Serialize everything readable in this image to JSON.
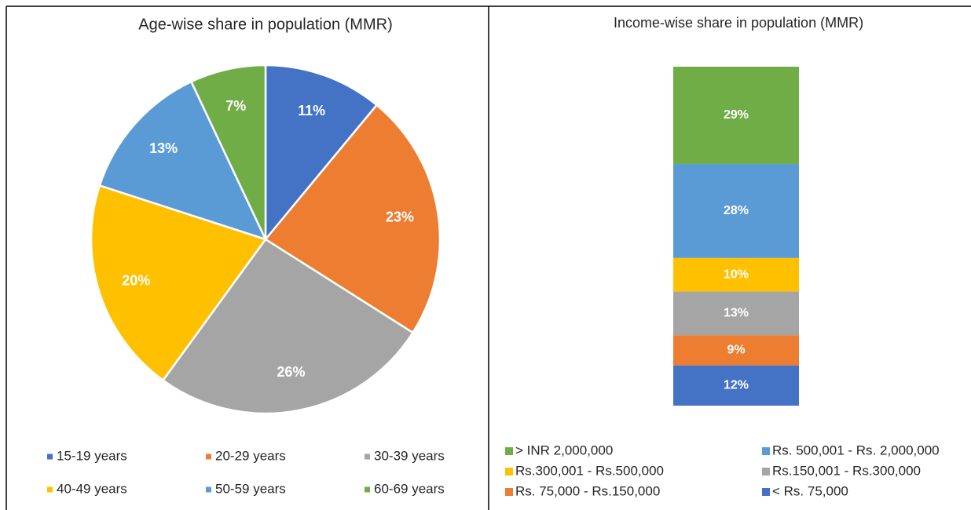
{
  "chart_data": [
    {
      "type": "pie",
      "title": "Age-wise share in population (MMR)",
      "categories": [
        "15-19 years",
        "20-29 years",
        "30-39 years",
        "40-49 years",
        "50-59 years",
        "60-69 years"
      ],
      "values": [
        11,
        23,
        26,
        20,
        13,
        7
      ],
      "value_labels": [
        "11%",
        "23%",
        "26%",
        "20%",
        "13%",
        "7%"
      ],
      "colors": [
        "#4472c4",
        "#ed7d31",
        "#a5a5a5",
        "#ffc000",
        "#5b9bd5",
        "#70ad47"
      ]
    },
    {
      "type": "stacked_bar",
      "title": "Income-wise share in population (MMR)",
      "series": [
        {
          "name": "< Rs. 75,000",
          "color": "#4472c4",
          "values": [
            12
          ],
          "value_labels": [
            "12%"
          ]
        },
        {
          "name": "Rs. 75,000 - Rs.150,000",
          "color": "#ed7d31",
          "values": [
            9
          ],
          "value_labels": [
            "9%"
          ]
        },
        {
          "name": "Rs.150,001 - Rs.300,000",
          "color": "#a5a5a5",
          "values": [
            13
          ],
          "value_labels": [
            "13%"
          ]
        },
        {
          "name": "Rs.300,001 - Rs.500,000",
          "color": "#ffc000",
          "values": [
            10
          ],
          "value_labels": [
            "10%"
          ]
        },
        {
          "name": "Rs. 500,001 - Rs. 2,000,000",
          "color": "#5b9bd5",
          "values": [
            28
          ],
          "value_labels": [
            "28%"
          ]
        },
        {
          "name": "> INR 2,000,000",
          "color": "#70ad47",
          "values": [
            29
          ],
          "value_labels": [
            "29%"
          ]
        }
      ]
    }
  ]
}
